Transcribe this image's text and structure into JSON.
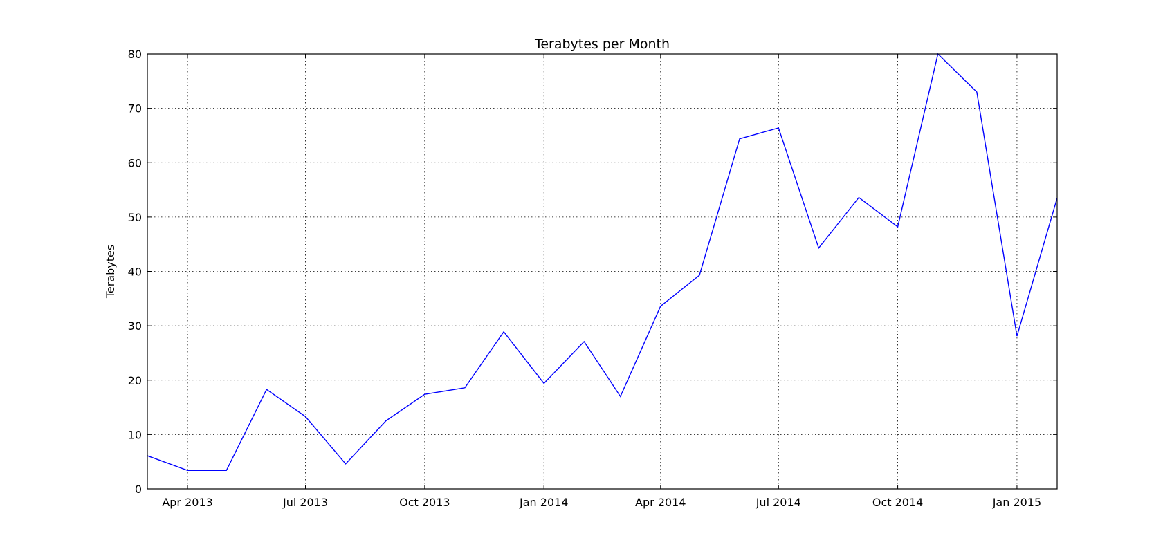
{
  "chart_data": {
    "type": "line",
    "title": "Terabytes per Month",
    "xlabel": "",
    "ylabel": "Terabytes",
    "x_type": "date",
    "xlim": [
      "2013-03-01",
      "2015-02-01"
    ],
    "ylim": [
      0,
      80
    ],
    "y_ticks": [
      0,
      10,
      20,
      30,
      40,
      50,
      60,
      70,
      80
    ],
    "x_ticks": [
      {
        "date": "2013-04-01",
        "label": "Apr 2013"
      },
      {
        "date": "2013-07-01",
        "label": "Jul 2013"
      },
      {
        "date": "2013-10-01",
        "label": "Oct 2013"
      },
      {
        "date": "2014-01-01",
        "label": "Jan 2014"
      },
      {
        "date": "2014-04-01",
        "label": "Apr 2014"
      },
      {
        "date": "2014-07-01",
        "label": "Jul 2014"
      },
      {
        "date": "2014-10-01",
        "label": "Oct 2014"
      },
      {
        "date": "2015-01-01",
        "label": "Jan 2015"
      }
    ],
    "grid": true,
    "series": [
      {
        "color": "#0000ff",
        "points": [
          {
            "x": "2013-03-01",
            "y": 6.1
          },
          {
            "x": "2013-04-01",
            "y": 3.4
          },
          {
            "x": "2013-05-01",
            "y": 3.4
          },
          {
            "x": "2013-06-01",
            "y": 18.3
          },
          {
            "x": "2013-07-01",
            "y": 13.3
          },
          {
            "x": "2013-08-01",
            "y": 4.6
          },
          {
            "x": "2013-09-01",
            "y": 12.5
          },
          {
            "x": "2013-10-01",
            "y": 17.4
          },
          {
            "x": "2013-11-01",
            "y": 18.6
          },
          {
            "x": "2013-12-01",
            "y": 28.9
          },
          {
            "x": "2014-01-01",
            "y": 19.4
          },
          {
            "x": "2014-02-01",
            "y": 27.1
          },
          {
            "x": "2014-03-01",
            "y": 17.0
          },
          {
            "x": "2014-04-01",
            "y": 33.6
          },
          {
            "x": "2014-05-01",
            "y": 39.3
          },
          {
            "x": "2014-06-01",
            "y": 64.4
          },
          {
            "x": "2014-07-01",
            "y": 66.4
          },
          {
            "x": "2014-08-01",
            "y": 44.3
          },
          {
            "x": "2014-09-01",
            "y": 53.6
          },
          {
            "x": "2014-10-01",
            "y": 48.2
          },
          {
            "x": "2014-11-01",
            "y": 80.0
          },
          {
            "x": "2014-12-01",
            "y": 73.0
          },
          {
            "x": "2015-01-01",
            "y": 28.1
          },
          {
            "x": "2015-02-01",
            "y": 53.5
          }
        ]
      }
    ]
  }
}
